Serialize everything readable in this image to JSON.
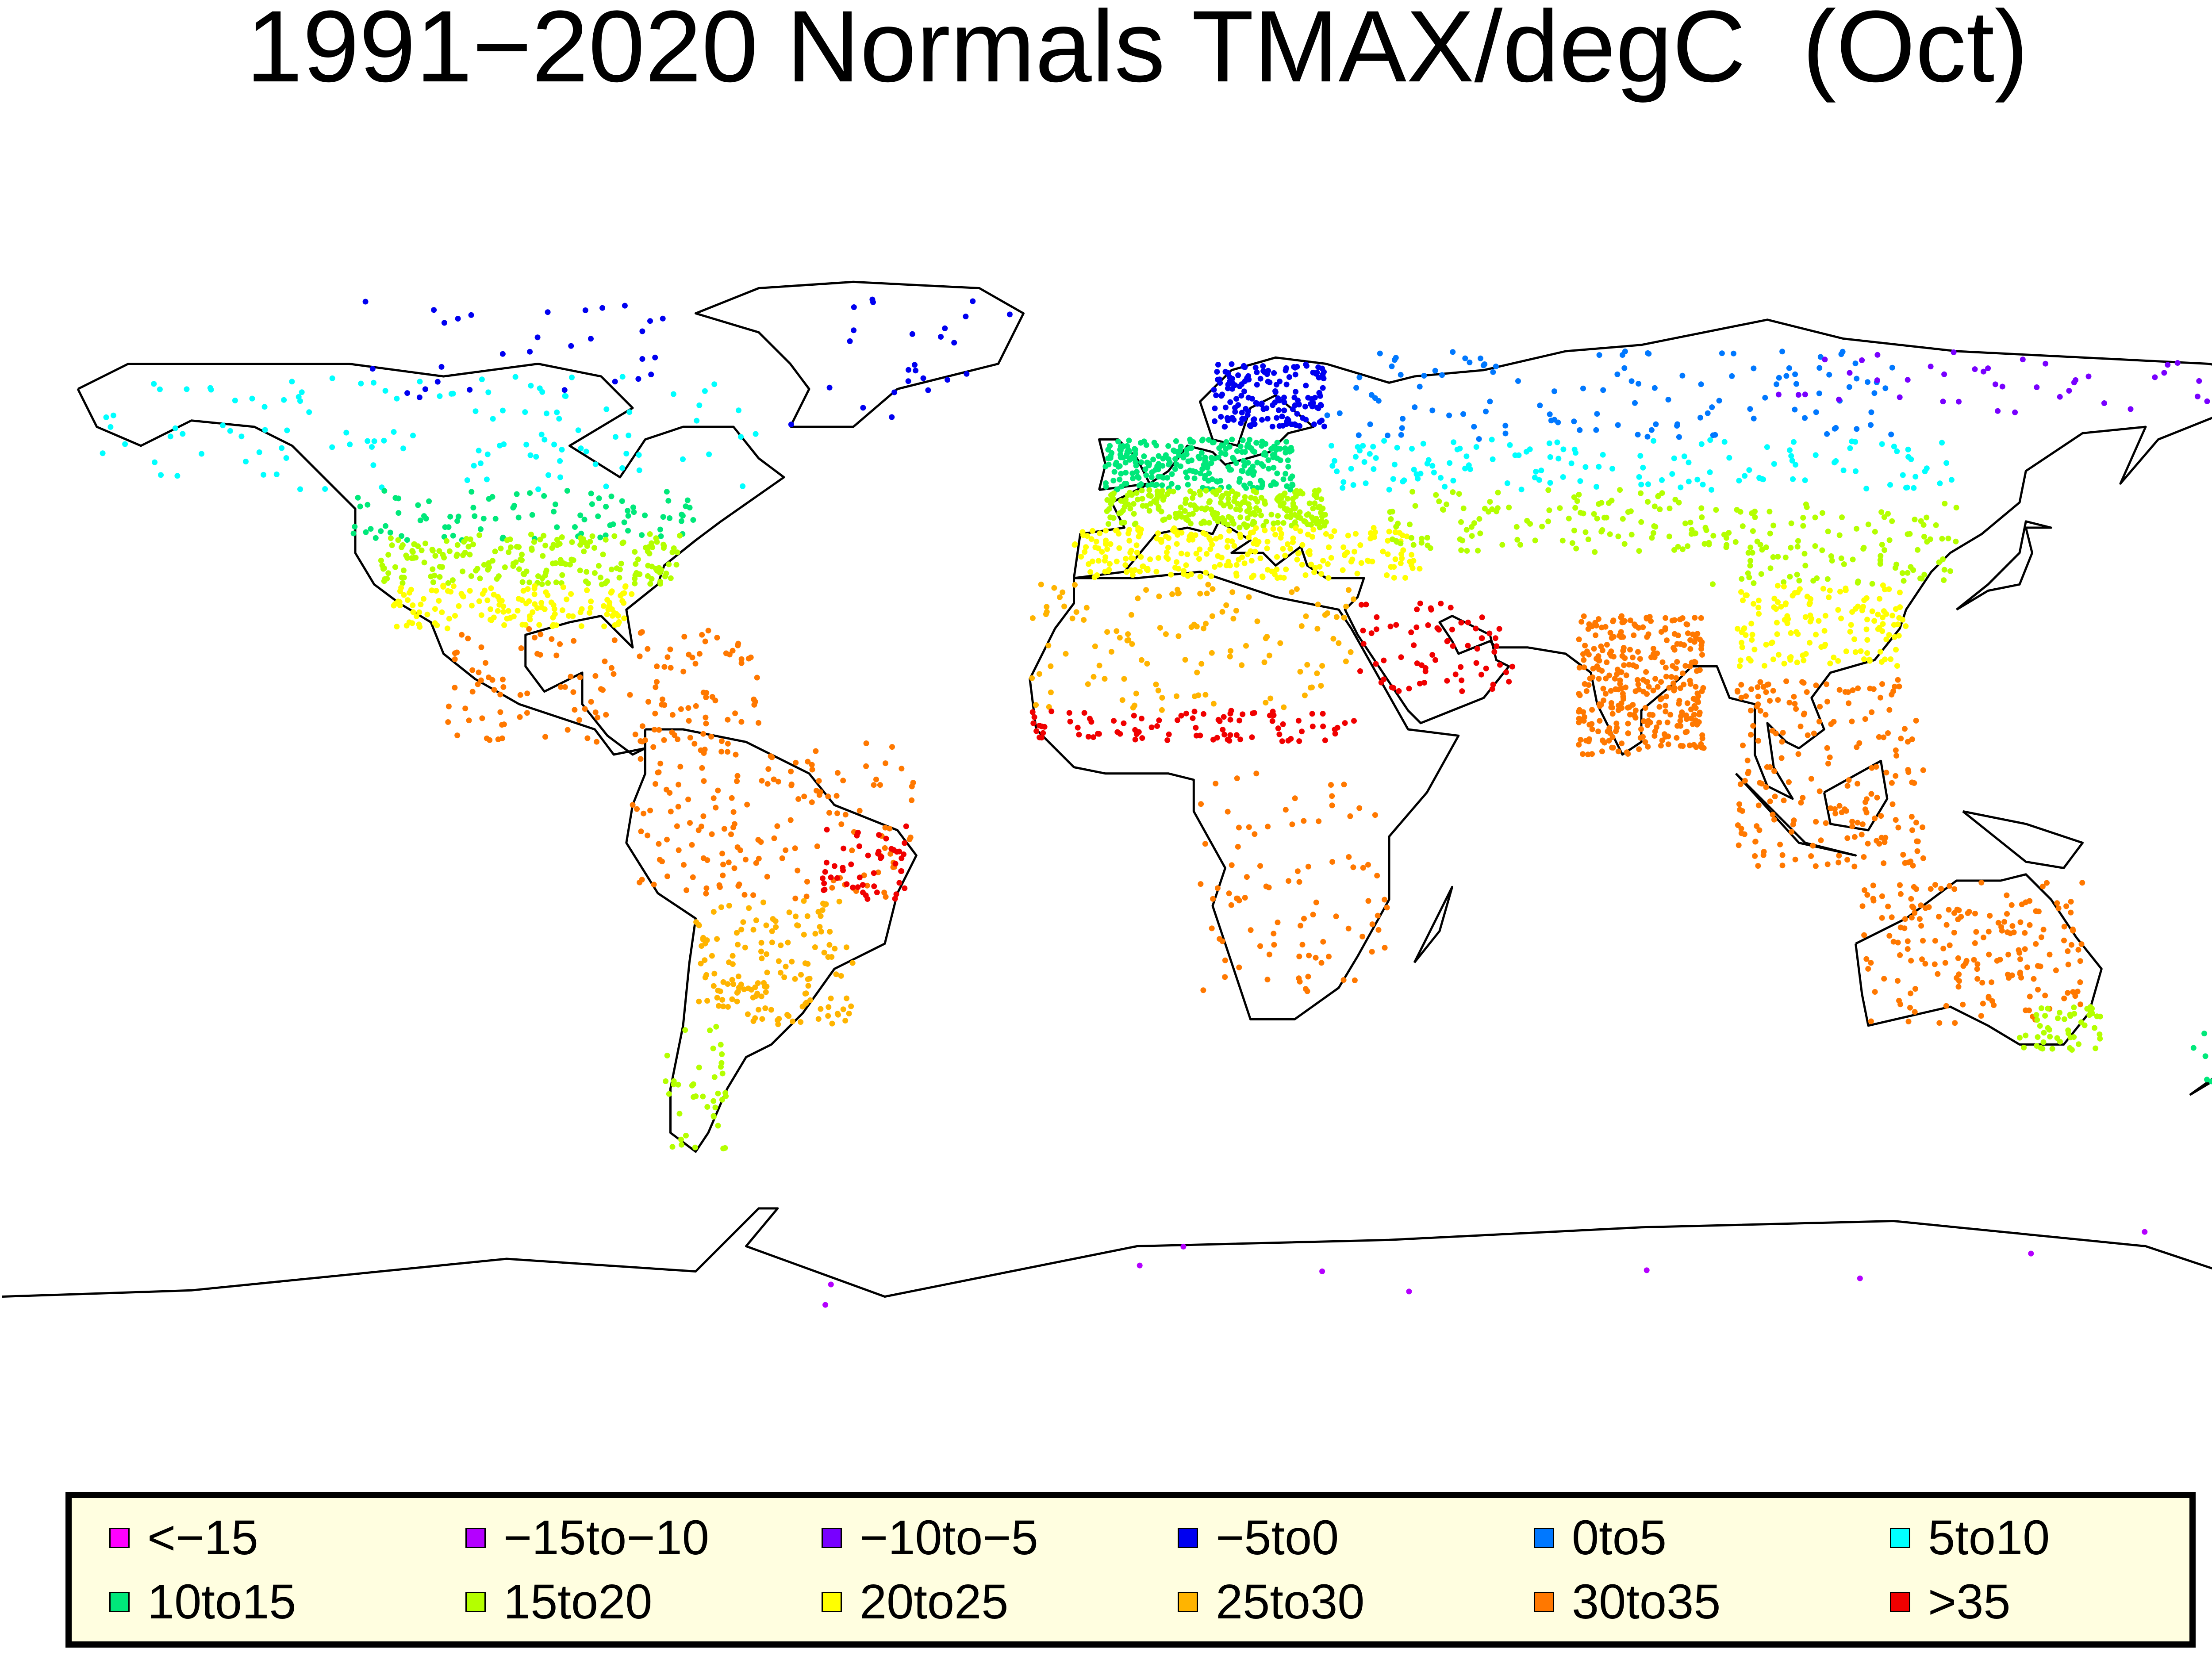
{
  "title": "1991−2020 Normals TMAX/degC  (Oct)",
  "legend": [
    {
      "label": "<−15",
      "color": "#ff00ff"
    },
    {
      "label": "−15to−10",
      "color": "#b400ff"
    },
    {
      "label": "−10to−5",
      "color": "#7800ff"
    },
    {
      "label": "−5to0",
      "color": "#0000f0"
    },
    {
      "label": "0to5",
      "color": "#0078ff"
    },
    {
      "label": "5to10",
      "color": "#00ffff"
    },
    {
      "label": "10to15",
      "color": "#00e87a"
    },
    {
      "label": "15to20",
      "color": "#b4ff00"
    },
    {
      "label": "20to25",
      "color": "#ffff00"
    },
    {
      "label": "25to30",
      "color": "#ffb400"
    },
    {
      "label": "30to35",
      "color": "#ff7800"
    },
    {
      "label": ">35",
      "color": "#f00000"
    }
  ],
  "map": {
    "projection": "equirectangular world",
    "boundaries": "coastlines and country borders",
    "regions": [
      {
        "name": "canada-alaska",
        "class": 5,
        "lon": [
          -165,
          -60
        ],
        "lat": [
          50,
          68
        ],
        "n": 120
      },
      {
        "name": "arctic-canada",
        "class": 3,
        "lon": [
          -125,
          -65
        ],
        "lat": [
          64,
          80
        ],
        "n": 30
      },
      {
        "name": "usa-north",
        "class": 6,
        "lon": [
          -125,
          -70
        ],
        "lat": [
          42,
          50
        ],
        "n": 90
      },
      {
        "name": "usa-central",
        "class": 7,
        "lon": [
          -120,
          -72
        ],
        "lat": [
          35,
          43
        ],
        "n": 200
      },
      {
        "name": "usa-south",
        "class": 8,
        "lon": [
          -118,
          -80
        ],
        "lat": [
          28,
          35
        ],
        "n": 140
      },
      {
        "name": "mexico-caribbean",
        "class": 10,
        "lon": [
          -110,
          -60
        ],
        "lat": [
          10,
          28
        ],
        "n": 140
      },
      {
        "name": "greenland",
        "class": 3,
        "lon": [
          -55,
          -20
        ],
        "lat": [
          60,
          82
        ],
        "n": 25
      },
      {
        "name": "scandinavia",
        "class": 3,
        "lon": [
          12,
          30
        ],
        "lat": [
          60,
          70
        ],
        "n": 160
      },
      {
        "name": "north-europe",
        "class": 6,
        "lon": [
          -5,
          25
        ],
        "lat": [
          50,
          58
        ],
        "n": 260
      },
      {
        "name": "central-europe",
        "class": 7,
        "lon": [
          -5,
          30
        ],
        "lat": [
          44,
          50
        ],
        "n": 250
      },
      {
        "name": "mediterranean",
        "class": 8,
        "lon": [
          -10,
          45
        ],
        "lat": [
          36,
          44
        ],
        "n": 250
      },
      {
        "name": "russia-north",
        "class": 4,
        "lon": [
          30,
          120
        ],
        "lat": [
          58,
          72
        ],
        "n": 120
      },
      {
        "name": "siberia-east",
        "class": 2,
        "lon": [
          100,
          170
        ],
        "lat": [
          62,
          72
        ],
        "n": 40
      },
      {
        "name": "russia-south",
        "class": 5,
        "lon": [
          30,
          130
        ],
        "lat": [
          50,
          58
        ],
        "n": 140
      },
      {
        "name": "central-asia",
        "class": 7,
        "lon": [
          40,
          90
        ],
        "lat": [
          40,
          50
        ],
        "n": 120
      },
      {
        "name": "china-north",
        "class": 7,
        "lon": [
          90,
          130
        ],
        "lat": [
          35,
          48
        ],
        "n": 120
      },
      {
        "name": "china-south",
        "class": 8,
        "lon": [
          95,
          122
        ],
        "lat": [
          22,
          35
        ],
        "n": 140
      },
      {
        "name": "north-africa",
        "class": 9,
        "lon": [
          -17,
          35
        ],
        "lat": [
          15,
          35
        ],
        "n": 120
      },
      {
        "name": "middle-east-hot",
        "class": 11,
        "lon": [
          35,
          60
        ],
        "lat": [
          18,
          32
        ],
        "n": 70
      },
      {
        "name": "sahel",
        "class": 11,
        "lon": [
          -17,
          35
        ],
        "lat": [
          10,
          15
        ],
        "n": 90
      },
      {
        "name": "india",
        "class": 10,
        "lon": [
          70,
          90
        ],
        "lat": [
          8,
          30
        ],
        "n": 320
      },
      {
        "name": "southeast-asia",
        "class": 10,
        "lon": [
          95,
          125
        ],
        "lat": [
          -10,
          20
        ],
        "n": 200
      },
      {
        "name": "south-america-north",
        "class": 10,
        "lon": [
          -80,
          -35
        ],
        "lat": [
          -15,
          10
        ],
        "n": 160
      },
      {
        "name": "brazil-east",
        "class": 11,
        "lon": [
          -50,
          -36
        ],
        "lat": [
          -15,
          -3
        ],
        "n": 50
      },
      {
        "name": "south-america-south",
        "class": 9,
        "lon": [
          -70,
          -45
        ],
        "lat": [
          -35,
          -15
        ],
        "n": 150
      },
      {
        "name": "patagonia",
        "class": 7,
        "lon": [
          -75,
          -65
        ],
        "lat": [
          -55,
          -35
        ],
        "n": 40
      },
      {
        "name": "africa-south",
        "class": 10,
        "lon": [
          10,
          40
        ],
        "lat": [
          -30,
          5
        ],
        "n": 90
      },
      {
        "name": "australia",
        "class": 10,
        "lon": [
          115,
          150
        ],
        "lat": [
          -35,
          -12
        ],
        "n": 180
      },
      {
        "name": "australia-south",
        "class": 7,
        "lon": [
          140,
          153
        ],
        "lat": [
          -39,
          -32
        ],
        "n": 50
      },
      {
        "name": "new-zealand",
        "class": 6,
        "lon": [
          167,
          178
        ],
        "lat": [
          -46,
          -35
        ],
        "n": 15
      },
      {
        "name": "antarctica",
        "class": 1,
        "lon": [
          -70,
          160
        ],
        "lat": [
          -80,
          -65
        ],
        "n": 10
      }
    ]
  }
}
